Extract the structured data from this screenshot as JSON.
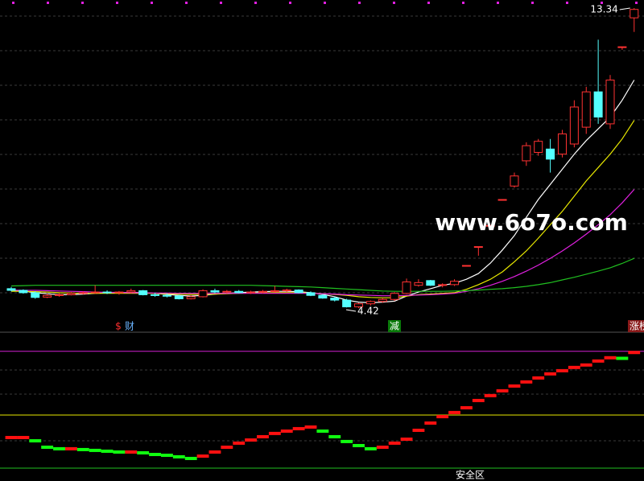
{
  "chart_data": [
    {
      "type": "candlestick",
      "ylim": [
        3.73,
        13.58
      ],
      "up_color": "#ff3232",
      "down_color": "#54ffff",
      "open": [
        5.0,
        4.95,
        4.88,
        4.75,
        4.8,
        4.82,
        4.86,
        4.88,
        4.9,
        4.88,
        4.9,
        4.94,
        4.82,
        4.8,
        4.78,
        4.7,
        4.76,
        4.94,
        4.9,
        4.92,
        4.88,
        4.9,
        4.92,
        4.94,
        4.96,
        4.88,
        4.8,
        4.72,
        4.66,
        4.46,
        4.55,
        4.62,
        4.68,
        4.86,
        5.1,
        5.24,
        5.1,
        5.12,
        5.69,
        6.25,
        6.88,
        7.65,
        8.05,
        8.8,
        9.05,
        9.15,
        9.0,
        9.3,
        9.8,
        10.85,
        9.9,
        12.19,
        13.05
      ],
      "high": [
        5.05,
        4.98,
        4.92,
        4.85,
        4.86,
        4.9,
        4.92,
        5.1,
        4.95,
        4.93,
        5.0,
        4.96,
        4.88,
        4.86,
        4.82,
        4.8,
        4.98,
        5.0,
        4.96,
        4.96,
        4.94,
        4.96,
        5.08,
        5.0,
        4.98,
        4.92,
        4.84,
        4.76,
        4.7,
        4.58,
        4.65,
        4.72,
        4.9,
        5.3,
        5.28,
        5.26,
        5.16,
        5.28,
        5.69,
        6.25,
        6.88,
        7.65,
        8.45,
        9.35,
        9.45,
        9.45,
        9.72,
        10.6,
        11.0,
        12.4,
        11.35,
        12.19,
        13.34
      ],
      "low": [
        4.92,
        4.85,
        4.7,
        4.72,
        4.76,
        4.8,
        4.83,
        4.85,
        4.84,
        4.82,
        4.86,
        4.8,
        4.76,
        4.74,
        4.68,
        4.68,
        4.74,
        4.86,
        4.86,
        4.86,
        4.84,
        4.86,
        4.88,
        4.9,
        4.86,
        4.78,
        4.7,
        4.62,
        4.44,
        4.42,
        4.5,
        4.58,
        4.64,
        4.84,
        5.06,
        5.08,
        5.04,
        5.08,
        5.69,
        5.98,
        6.88,
        7.65,
        8.0,
        8.65,
        8.95,
        8.45,
        8.9,
        9.2,
        9.6,
        9.9,
        9.75,
        12.1,
        12.63
      ],
      "close": [
        4.95,
        4.88,
        4.74,
        4.8,
        4.82,
        4.86,
        4.88,
        4.9,
        4.88,
        4.9,
        4.94,
        4.82,
        4.8,
        4.78,
        4.7,
        4.76,
        4.94,
        4.9,
        4.92,
        4.88,
        4.9,
        4.92,
        4.94,
        4.96,
        4.88,
        4.8,
        4.72,
        4.66,
        4.46,
        4.55,
        4.62,
        4.68,
        4.86,
        5.2,
        5.18,
        5.1,
        5.12,
        5.22,
        5.69,
        6.25,
        6.88,
        7.65,
        8.35,
        9.25,
        9.38,
        8.85,
        9.6,
        10.4,
        10.85,
        10.1,
        11.2,
        12.19,
        13.3
      ],
      "series": [
        {
          "color": "#ffffff",
          "values": [
            4.95,
            4.93,
            4.88,
            4.85,
            4.82,
            4.82,
            4.84,
            4.86,
            4.87,
            4.88,
            4.89,
            4.88,
            4.86,
            4.83,
            4.8,
            4.78,
            4.8,
            4.84,
            4.86,
            4.88,
            4.9,
            4.91,
            4.92,
            4.92,
            4.91,
            4.88,
            4.83,
            4.76,
            4.66,
            4.6,
            4.58,
            4.6,
            4.63,
            4.78,
            4.9,
            5.0,
            5.1,
            5.16,
            5.28,
            5.45,
            5.76,
            6.15,
            6.58,
            7.12,
            7.65,
            8.1,
            8.55,
            9.0,
            9.4,
            9.75,
            10.1,
            10.6,
            11.2
          ]
        },
        {
          "color": "#e8e800",
          "values": [
            4.92,
            4.92,
            4.91,
            4.9,
            4.88,
            4.87,
            4.86,
            4.86,
            4.86,
            4.86,
            4.86,
            4.86,
            4.86,
            4.85,
            4.84,
            4.83,
            4.83,
            4.84,
            4.85,
            4.86,
            4.87,
            4.87,
            4.88,
            4.88,
            4.88,
            4.87,
            4.85,
            4.83,
            4.8,
            4.76,
            4.74,
            4.73,
            4.73,
            4.78,
            4.82,
            4.84,
            4.86,
            4.88,
            4.98,
            5.12,
            5.28,
            5.5,
            5.8,
            6.12,
            6.5,
            6.9,
            7.3,
            7.75,
            8.2,
            8.6,
            9.0,
            9.45,
            10.0
          ]
        },
        {
          "color": "#e020e0",
          "values": [
            4.96,
            4.95,
            4.95,
            4.94,
            4.93,
            4.92,
            4.91,
            4.9,
            4.89,
            4.89,
            4.88,
            4.88,
            4.87,
            4.87,
            4.86,
            4.86,
            4.86,
            4.86,
            4.86,
            4.86,
            4.86,
            4.86,
            4.86,
            4.86,
            4.86,
            4.86,
            4.85,
            4.84,
            4.82,
            4.81,
            4.8,
            4.79,
            4.79,
            4.8,
            4.81,
            4.82,
            4.84,
            4.86,
            4.92,
            5.0,
            5.1,
            5.22,
            5.36,
            5.52,
            5.7,
            5.9,
            6.12,
            6.36,
            6.62,
            6.9,
            7.2,
            7.55,
            7.95
          ]
        },
        {
          "color": "#20c020",
          "values": [
            5.08,
            5.09,
            5.1,
            5.1,
            5.1,
            5.1,
            5.1,
            5.1,
            5.1,
            5.1,
            5.1,
            5.1,
            5.1,
            5.1,
            5.1,
            5.1,
            5.1,
            5.1,
            5.1,
            5.1,
            5.1,
            5.09,
            5.08,
            5.07,
            5.06,
            5.05,
            5.03,
            5.01,
            4.99,
            4.97,
            4.95,
            4.93,
            4.92,
            4.92,
            4.92,
            4.92,
            4.92,
            4.93,
            4.94,
            4.96,
            4.98,
            5.0,
            5.03,
            5.07,
            5.12,
            5.18,
            5.26,
            5.34,
            5.43,
            5.52,
            5.62,
            5.75,
            5.9
          ]
        }
      ],
      "annotations": [
        "13.34",
        "4.42"
      ],
      "signals": [
        {
          "text": "$",
          "color": "#ff3030"
        },
        {
          "text": "财",
          "color": "#6ab4ff"
        },
        {
          "text": "减",
          "color": "#ffffff"
        },
        {
          "text": "涨榜",
          "color": "#ffffff"
        }
      ],
      "watermark": "www.6o7o.com"
    },
    {
      "type": "step",
      "ylim": [
        -11,
        115
      ],
      "up_color": "#ff1010",
      "down_color": "#10ff10",
      "values": [
        26.2,
        26.2,
        23.4,
        17.9,
        16.6,
        16.6,
        15.9,
        15.2,
        14.5,
        13.8,
        13.8,
        13.1,
        11.7,
        11.0,
        9.7,
        8.3,
        10.3,
        13.8,
        17.9,
        21.4,
        24.1,
        26.9,
        29.7,
        31.7,
        33.8,
        35.2,
        31.7,
        26.9,
        22.8,
        19.3,
        16.6,
        17.9,
        21.4,
        24.8,
        32.4,
        38.6,
        44.1,
        47.6,
        51.7,
        57.9,
        62.1,
        66.2,
        70.3,
        73.8,
        77.2,
        80.7,
        83.4,
        86.2,
        88.3,
        91.7,
        94.5,
        94.0,
        99.0
      ],
      "levels": [
        {
          "value": 100,
          "color": "#d020d0"
        },
        {
          "value": 45.5,
          "color": "#e8e800"
        },
        {
          "value": 0,
          "color": "#20c020"
        }
      ],
      "zone_label": "安全区"
    }
  ]
}
